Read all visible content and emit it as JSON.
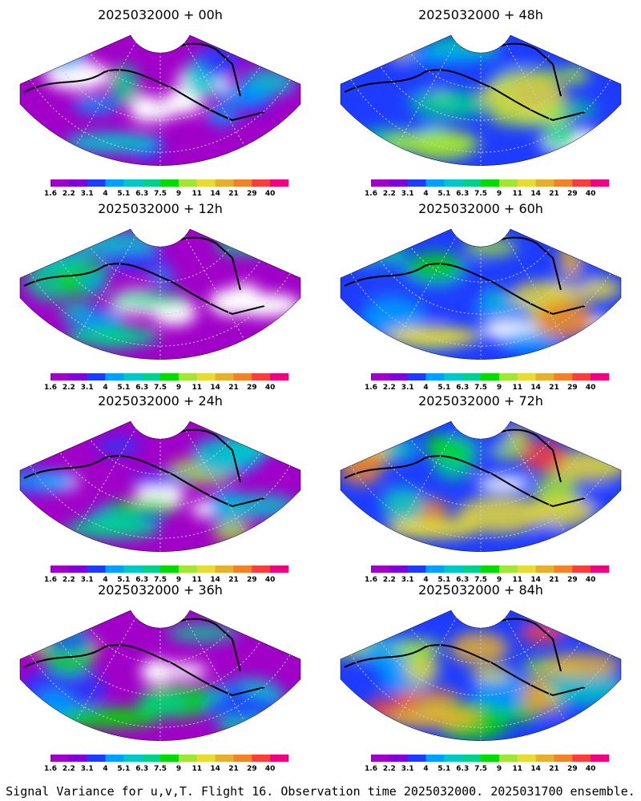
{
  "chart_data": {
    "type": "heatmap",
    "caption": "Signal Variance for u,v,T. Flight 16. Observation time 2025032000. 2025031700 ensemble.",
    "panels": [
      {
        "title": "2025032000 + 00h",
        "lead_hours": 0
      },
      {
        "title": "2025032000 + 48h",
        "lead_hours": 48
      },
      {
        "title": "2025032000 + 12h",
        "lead_hours": 12
      },
      {
        "title": "2025032000 + 60h",
        "lead_hours": 60
      },
      {
        "title": "2025032000 + 24h",
        "lead_hours": 24
      },
      {
        "title": "2025032000 + 72h",
        "lead_hours": 72
      },
      {
        "title": "2025032000 + 36h",
        "lead_hours": 36
      },
      {
        "title": "2025032000 + 84h",
        "lead_hours": 84
      }
    ],
    "colorbar": {
      "labels": [
        "1.6",
        "2.2",
        "3.1",
        "4",
        "5.1",
        "6.3",
        "7.5",
        "9",
        "11",
        "14",
        "21",
        "29",
        "40"
      ],
      "colors": [
        "#a000c8",
        "#8200dc",
        "#1e3cff",
        "#00a0ff",
        "#00c8c8",
        "#00d28c",
        "#00dc00",
        "#a0e632",
        "#e6dc32",
        "#e6af2d",
        "#f08228",
        "#fa3c3c",
        "#f00082"
      ]
    }
  }
}
